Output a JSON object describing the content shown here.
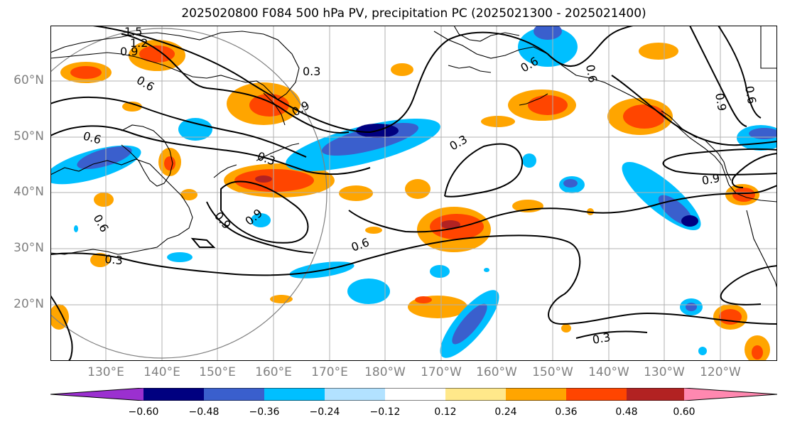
{
  "title": "2025020800 F084 500 hPa PV, precipitation PC (2025021300 - 2025021400)",
  "map": {
    "lat_labels": [
      "60°N",
      "50°N",
      "40°N",
      "30°N",
      "20°N"
    ],
    "lon_labels": [
      "130°E",
      "140°E",
      "150°E",
      "160°E",
      "170°E",
      "180°W",
      "170°W",
      "160°W",
      "150°W",
      "140°W",
      "130°W",
      "120°W"
    ],
    "contour_labels": [
      "1.5",
      "1.2",
      "0.9",
      "0.6",
      "0.9",
      "0.9",
      "0.6",
      "0.3",
      "0.6",
      "0.3",
      "0.9",
      "0.9",
      "0.6",
      "0.3",
      "0.3",
      "0.9",
      "0.6",
      "0.6",
      "0.6",
      "0.3"
    ],
    "contour_color": "#000000",
    "gridline_color": "#b0b0b0",
    "coastline_color": "#000000",
    "circle_color": "#808080"
  },
  "colorbar": {
    "ticks": [
      "−0.60",
      "−0.48",
      "−0.36",
      "−0.24",
      "−0.12",
      "0.12",
      "0.24",
      "0.36",
      "0.48",
      "0.60"
    ],
    "colors": [
      "#9b30d0",
      "#000080",
      "#3a5fcd",
      "#00bfff",
      "#b2e2ff",
      "#ffffff",
      "#ffe88a",
      "#ffa500",
      "#ff4500",
      "#b22222",
      "#ff88b0"
    ]
  }
}
